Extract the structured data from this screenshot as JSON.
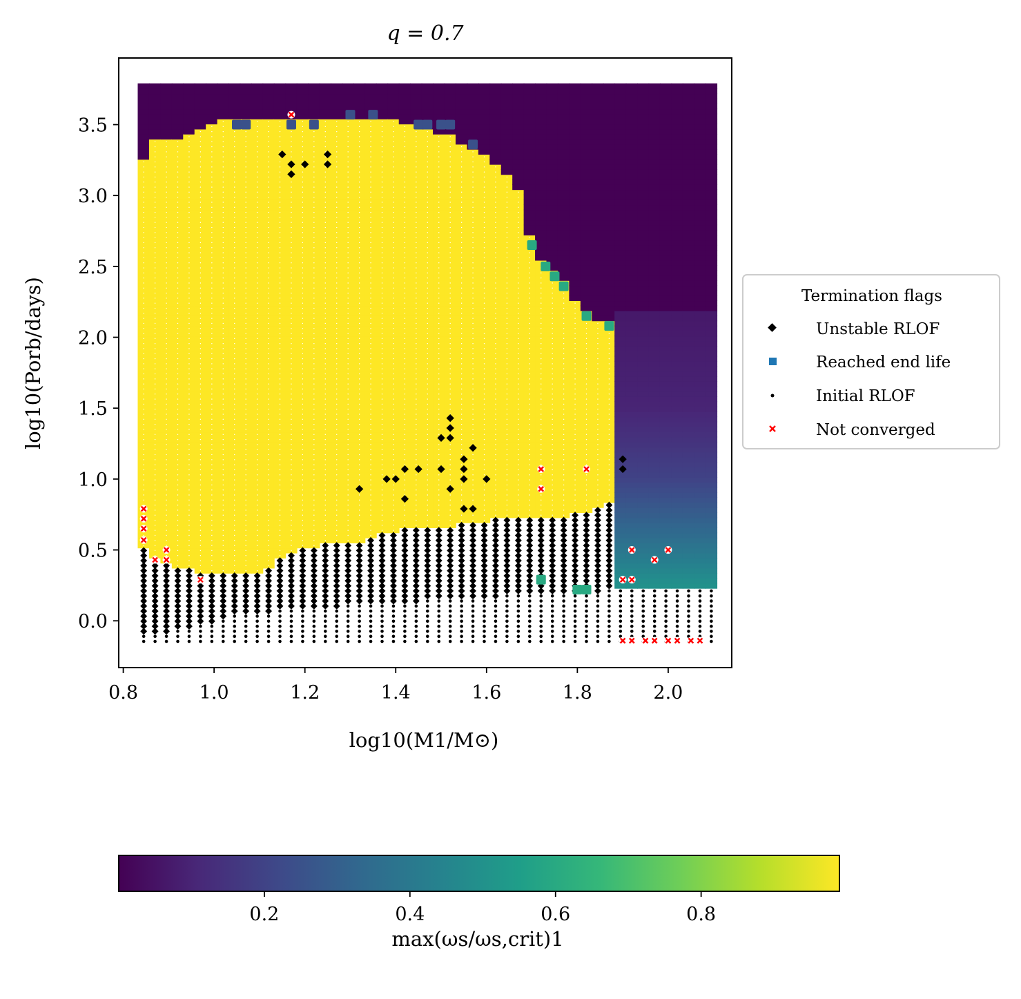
{
  "chart_data": {
    "type": "scatter",
    "title": "q = 0.7",
    "xlabel": "log10(M1/M⊙)",
    "ylabel": "log10(Porb/days)",
    "xlim": [
      0.79,
      2.14
    ],
    "ylim": [
      -0.33,
      3.97
    ],
    "xticks": [
      0.8,
      1.0,
      1.2,
      1.4,
      1.6,
      1.8,
      2.0
    ],
    "yticks": [
      0.0,
      0.5,
      1.0,
      1.5,
      2.0,
      2.5,
      3.0,
      3.5
    ],
    "grid": {
      "x_start": 0.845,
      "x_step": 0.025,
      "x_count": 51,
      "y_start": -0.145,
      "y_step": 0.0356,
      "y_count": 111
    },
    "colorbar": {
      "label": "max(ωs/ωs,crit)1",
      "range": [
        0.0,
        0.99
      ],
      "ticks": [
        0.2,
        0.4,
        0.6,
        0.8
      ],
      "colormap": "viridis",
      "colormap_stops": [
        "#440154",
        "#482878",
        "#3e4989",
        "#31688e",
        "#26828e",
        "#1f9e89",
        "#35b779",
        "#6ece58",
        "#b5de2b",
        "#fde725"
      ]
    },
    "legend": {
      "title": "Termination flags",
      "position": "right-center",
      "entries": [
        {
          "label": "Unstable RLOF",
          "marker": "diamond",
          "color": "#000000"
        },
        {
          "label": "Reached end life",
          "marker": "square",
          "color": "#1f77b4"
        },
        {
          "label": "Initial RLOF",
          "marker": "dot",
          "color": "#000000"
        },
        {
          "label": "Not converged",
          "marker": "x",
          "color": "#ff0000"
        }
      ]
    },
    "regions": {
      "yellow_top_boundary": [
        [
          0.845,
          3.24
        ],
        [
          0.87,
          3.38
        ],
        [
          0.9,
          3.38
        ],
        [
          0.95,
          3.45
        ],
        [
          1.0,
          3.52
        ],
        [
          1.1,
          3.54
        ],
        [
          1.2,
          3.55
        ],
        [
          1.35,
          3.55
        ],
        [
          1.45,
          3.5
        ],
        [
          1.52,
          3.42
        ],
        [
          1.6,
          3.28
        ],
        [
          1.67,
          3.05
        ],
        [
          1.7,
          2.65
        ],
        [
          1.73,
          2.5
        ],
        [
          1.77,
          2.4
        ],
        [
          1.8,
          2.22
        ],
        [
          1.83,
          2.15
        ],
        [
          1.87,
          2.1
        ],
        [
          1.9,
          1.75
        ],
        [
          1.91,
          1.5
        ]
      ],
      "unstable_top_boundary": [
        [
          0.845,
          0.5
        ],
        [
          0.9,
          0.4
        ],
        [
          1.0,
          0.32
        ],
        [
          1.1,
          0.33
        ],
        [
          1.15,
          0.45
        ],
        [
          1.2,
          0.52
        ],
        [
          1.3,
          0.55
        ],
        [
          1.42,
          0.65
        ],
        [
          1.55,
          0.68
        ],
        [
          1.65,
          0.73
        ],
        [
          1.75,
          0.72
        ],
        [
          1.82,
          0.78
        ],
        [
          1.88,
          0.85
        ]
      ],
      "initial_rlof_top_boundary": [
        [
          0.845,
          -0.1
        ],
        [
          0.95,
          -0.05
        ],
        [
          1.05,
          0.05
        ],
        [
          1.2,
          0.08
        ],
        [
          1.35,
          0.12
        ],
        [
          1.5,
          0.15
        ],
        [
          1.65,
          0.18
        ],
        [
          1.8,
          0.2
        ],
        [
          1.9,
          0.22
        ],
        [
          2.08,
          0.23
        ]
      ],
      "high_mass_column": {
        "x_from": 1.9,
        "y_from": 0.25,
        "color_values": [
          [
            0.25,
            0.5
          ],
          [
            0.6,
            0.35
          ],
          [
            1.0,
            0.2
          ],
          [
            1.5,
            0.1
          ],
          [
            2.0,
            0.02
          ]
        ]
      }
    },
    "points": {
      "unstable_rlof_islands": [
        [
          1.15,
          3.29
        ],
        [
          1.17,
          3.22
        ],
        [
          1.17,
          3.15
        ],
        [
          1.2,
          3.22
        ],
        [
          1.25,
          3.29
        ],
        [
          1.25,
          3.22
        ],
        [
          1.32,
          0.93
        ],
        [
          1.38,
          1.0
        ],
        [
          1.4,
          1.0
        ],
        [
          1.42,
          1.07
        ],
        [
          1.42,
          0.86
        ],
        [
          1.45,
          1.07
        ],
        [
          1.5,
          1.29
        ],
        [
          1.5,
          1.07
        ],
        [
          1.52,
          1.43
        ],
        [
          1.52,
          1.36
        ],
        [
          1.52,
          1.29
        ],
        [
          1.52,
          0.93
        ],
        [
          1.55,
          1.14
        ],
        [
          1.57,
          1.22
        ],
        [
          1.55,
          1.07
        ],
        [
          1.55,
          1.0
        ],
        [
          1.55,
          0.79
        ],
        [
          1.57,
          0.79
        ],
        [
          1.6,
          1.0
        ],
        [
          1.9,
          1.14
        ],
        [
          1.9,
          1.07
        ]
      ],
      "reached_end_life": [
        [
          1.35,
          3.57
        ],
        [
          1.3,
          3.57
        ],
        [
          1.05,
          3.5
        ],
        [
          1.07,
          3.5
        ],
        [
          1.17,
          3.5
        ],
        [
          1.22,
          3.5
        ],
        [
          1.45,
          3.5
        ],
        [
          1.47,
          3.5
        ],
        [
          1.5,
          3.5
        ],
        [
          1.52,
          3.5
        ],
        [
          1.57,
          3.36
        ],
        [
          1.7,
          2.65
        ],
        [
          1.73,
          2.5
        ],
        [
          1.75,
          2.43
        ],
        [
          1.77,
          2.36
        ],
        [
          1.82,
          2.15
        ],
        [
          1.87,
          2.08
        ],
        [
          1.72,
          0.29
        ],
        [
          1.8,
          0.22
        ],
        [
          1.82,
          0.22
        ]
      ],
      "not_converged": [
        [
          0.845,
          0.79
        ],
        [
          0.845,
          0.72
        ],
        [
          0.845,
          0.65
        ],
        [
          0.845,
          0.57
        ],
        [
          0.87,
          0.43
        ],
        [
          0.895,
          0.5
        ],
        [
          0.895,
          0.43
        ],
        [
          0.97,
          0.29
        ],
        [
          1.17,
          3.57
        ],
        [
          1.72,
          1.07
        ],
        [
          1.72,
          0.93
        ],
        [
          1.82,
          1.07
        ],
        [
          1.9,
          0.29
        ],
        [
          1.92,
          0.29
        ],
        [
          1.92,
          0.5
        ],
        [
          1.97,
          0.43
        ],
        [
          2.0,
          0.5
        ],
        [
          1.9,
          -0.14
        ],
        [
          1.92,
          -0.14
        ],
        [
          1.95,
          -0.14
        ],
        [
          1.97,
          -0.14
        ],
        [
          2.0,
          -0.14
        ],
        [
          2.02,
          -0.14
        ],
        [
          2.05,
          -0.14
        ],
        [
          2.07,
          -0.14
        ]
      ]
    }
  }
}
